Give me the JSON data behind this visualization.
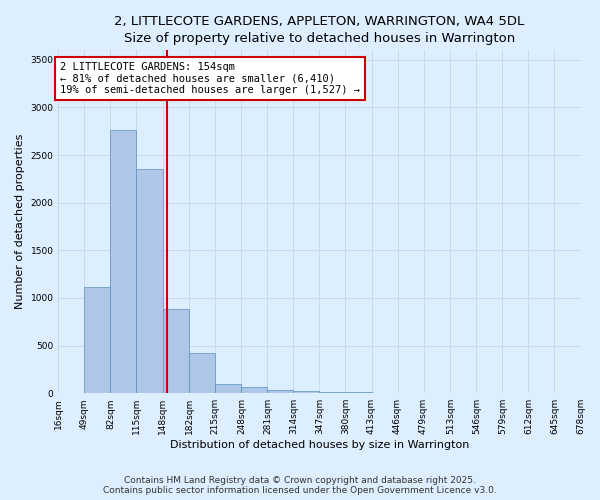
{
  "title_line1": "2, LITTLECOTE GARDENS, APPLETON, WARRINGTON, WA4 5DL",
  "title_line2": "Size of property relative to detached houses in Warrington",
  "xlabel": "Distribution of detached houses by size in Warrington",
  "ylabel": "Number of detached properties",
  "bin_edges": [
    16,
    49,
    82,
    115,
    148,
    182,
    215,
    248,
    281,
    314,
    347,
    380,
    413,
    446,
    479,
    513,
    546,
    579,
    612,
    645,
    678
  ],
  "bar_heights": [
    5,
    1120,
    2760,
    2350,
    880,
    420,
    100,
    60,
    30,
    20,
    10,
    8,
    5,
    5,
    3,
    2,
    2,
    1,
    1,
    1
  ],
  "bar_color": "#aec6e8",
  "bar_edgecolor": "#5a8fc0",
  "property_size": 154,
  "red_line_color": "#cc0000",
  "annotation_text": "2 LITTLECOTE GARDENS: 154sqm\n← 81% of detached houses are smaller (6,410)\n19% of semi-detached houses are larger (1,527) →",
  "annotation_box_color": "#ffffff",
  "annotation_box_edgecolor": "#cc0000",
  "ylim": [
    0,
    3600
  ],
  "yticks": [
    0,
    500,
    1000,
    1500,
    2000,
    2500,
    3000,
    3500
  ],
  "grid_color": "#c8daea",
  "background_color": "#ddeeff",
  "footer_line1": "Contains HM Land Registry data © Crown copyright and database right 2025.",
  "footer_line2": "Contains public sector information licensed under the Open Government Licence v3.0.",
  "title_fontsize": 9.5,
  "axis_label_fontsize": 8,
  "tick_fontsize": 6.5,
  "annotation_fontsize": 7.5,
  "footer_fontsize": 6.5
}
